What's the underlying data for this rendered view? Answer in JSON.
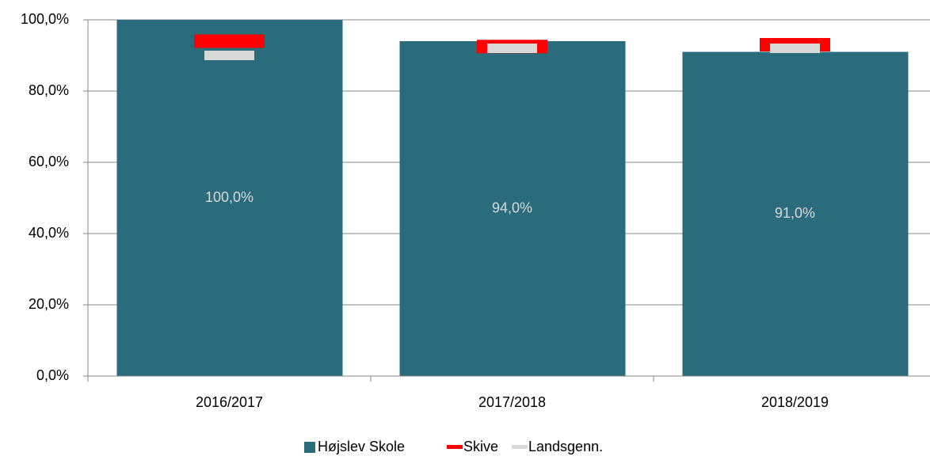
{
  "chart_data": {
    "type": "bar",
    "categories": [
      "2016/2017",
      "2017/2018",
      "2018/2019"
    ],
    "series": [
      {
        "name": "Højslev Skole",
        "type": "bar",
        "color": "#2a6b7c",
        "values": [
          100,
          94,
          91
        ],
        "value_labels": [
          "100,0%",
          "94,0%",
          "91,0%"
        ]
      },
      {
        "name": "Skive",
        "type": "line",
        "color": "#ff0000",
        "values": [
          94,
          92.5,
          93
        ]
      },
      {
        "name": "Landsgenn.",
        "type": "line",
        "color": "#d9d9d9",
        "values": [
          90,
          92,
          92
        ]
      }
    ],
    "ylim": [
      0,
      100
    ],
    "yticks": [
      {
        "value": 0,
        "label": "0,0%"
      },
      {
        "value": 20,
        "label": "20,0%"
      },
      {
        "value": 40,
        "label": "40,0%"
      },
      {
        "value": 60,
        "label": "60,0%"
      },
      {
        "value": 80,
        "label": "80,0%"
      },
      {
        "value": 100,
        "label": "100,0%"
      }
    ],
    "grid": true,
    "legend": "bottom"
  }
}
